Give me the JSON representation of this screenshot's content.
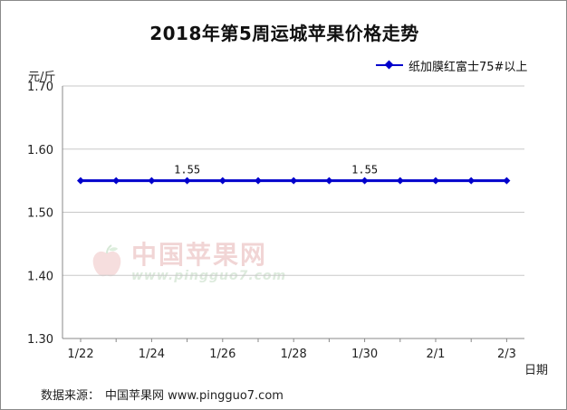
{
  "chart_data": {
    "type": "line",
    "title": "2018年第5周运城苹果价格走势",
    "ylabel": "元/斤",
    "xlabel": "日期",
    "categories": [
      "1/22",
      "1/23",
      "1/24",
      "1/25",
      "1/26",
      "1/27",
      "1/28",
      "1/29",
      "1/30",
      "1/31",
      "2/1",
      "2/2",
      "2/3"
    ],
    "x_tick_labels": [
      "1/22",
      "1/24",
      "1/26",
      "1/28",
      "1/30",
      "2/1",
      "2/3"
    ],
    "y_ticks": [
      "1.30",
      "1.40",
      "1.50",
      "1.60",
      "1.70"
    ],
    "ylim": [
      1.3,
      1.7
    ],
    "grid": "horizontal",
    "legend_position": "top-right",
    "series": [
      {
        "name": "纸加膜红富士75#以上",
        "color": "#0000cc",
        "values": [
          1.55,
          1.55,
          1.55,
          1.55,
          1.55,
          1.55,
          1.55,
          1.55,
          1.55,
          1.55,
          1.55,
          1.55,
          1.55
        ]
      }
    ],
    "data_labels": [
      {
        "category": "1/25",
        "text": "1.55"
      },
      {
        "category": "1/30",
        "text": "1.55"
      }
    ]
  },
  "source": {
    "label": "数据来源：",
    "text": "中国苹果网 www.pingguo7.com"
  },
  "watermark": {
    "main": "中国苹果网",
    "sub": "www.pingguo7.com"
  }
}
